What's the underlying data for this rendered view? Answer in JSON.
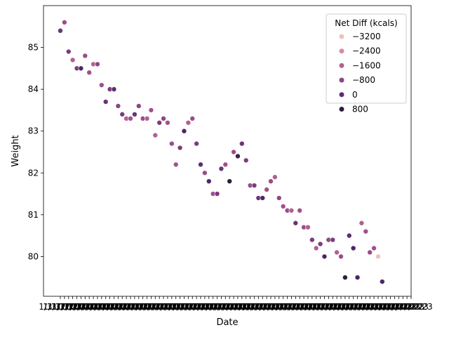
{
  "chart_data": {
    "type": "scatter",
    "title": "",
    "xlabel": "Date",
    "ylabel": "Weight",
    "x_tick_label_text": "1/31/2023",
    "ylim": [
      79.05,
      86.0
    ],
    "yticks": [
      80,
      81,
      82,
      83,
      84,
      85
    ],
    "grid": false,
    "legend": {
      "title": "Net Diff (kcals)",
      "position": "top-right",
      "entries": [
        {
          "label": "−3200",
          "color": "#ebc3b8"
        },
        {
          "label": "−2400",
          "color": "#d58e9c"
        },
        {
          "label": "−1600",
          "color": "#b4628f"
        },
        {
          "label": "−800",
          "color": "#8b4786"
        },
        {
          "label": "0",
          "color": "#5b2d6e"
        },
        {
          "label": "800",
          "color": "#2d1e3e"
        }
      ]
    },
    "points": [
      {
        "y": 85.4,
        "c": "#6a3479"
      },
      {
        "y": 85.6,
        "c": "#9b4c89"
      },
      {
        "y": 84.9,
        "c": "#7a3c80"
      },
      {
        "y": 84.7,
        "c": "#b25f93"
      },
      {
        "y": 84.5,
        "c": "#7a3c80"
      },
      {
        "y": 84.5,
        "c": "#4b2665"
      },
      {
        "y": 84.8,
        "c": "#9b4c89"
      },
      {
        "y": 84.4,
        "c": "#a2508c"
      },
      {
        "y": 84.6,
        "c": "#b25f93"
      },
      {
        "y": 84.6,
        "c": "#8b4786"
      },
      {
        "y": 84.1,
        "c": "#a2508c"
      },
      {
        "y": 83.7,
        "c": "#6a3479"
      },
      {
        "y": 84.0,
        "c": "#7a3c80"
      },
      {
        "y": 84.0,
        "c": "#5b2d6e"
      },
      {
        "y": 83.6,
        "c": "#8b4786"
      },
      {
        "y": 83.4,
        "c": "#7a3c80"
      },
      {
        "y": 83.3,
        "c": "#b25f93"
      },
      {
        "y": 83.3,
        "c": "#a2508c"
      },
      {
        "y": 83.4,
        "c": "#6a3479"
      },
      {
        "y": 83.6,
        "c": "#8b4786"
      },
      {
        "y": 83.3,
        "c": "#9b4c89"
      },
      {
        "y": 83.3,
        "c": "#b25f93"
      },
      {
        "y": 83.5,
        "c": "#a2508c"
      },
      {
        "y": 82.9,
        "c": "#b25f93"
      },
      {
        "y": 83.2,
        "c": "#7a3c80"
      },
      {
        "y": 83.3,
        "c": "#8b4786"
      },
      {
        "y": 83.2,
        "c": "#a2508c"
      },
      {
        "y": 82.7,
        "c": "#9b4c89"
      },
      {
        "y": 82.2,
        "c": "#a2508c"
      },
      {
        "y": 82.6,
        "c": "#7a3c80"
      },
      {
        "y": 83.0,
        "c": "#4b2665"
      },
      {
        "y": 83.2,
        "c": "#b25f93"
      },
      {
        "y": 83.3,
        "c": "#9b4c89"
      },
      {
        "y": 82.7,
        "c": "#7a3c80"
      },
      {
        "y": 82.2,
        "c": "#5b2d6e"
      },
      {
        "y": 82.0,
        "c": "#9b4c89"
      },
      {
        "y": 81.8,
        "c": "#4b2665"
      },
      {
        "y": 81.5,
        "c": "#a2508c"
      },
      {
        "y": 81.5,
        "c": "#7a3c80"
      },
      {
        "y": 82.1,
        "c": "#6a3479"
      },
      {
        "y": 82.2,
        "c": "#a2508c"
      },
      {
        "y": 81.8,
        "c": "#2d1e3e"
      },
      {
        "y": 82.5,
        "c": "#9b4c89"
      },
      {
        "y": 82.4,
        "c": "#3b1f52"
      },
      {
        "y": 82.7,
        "c": "#6a3479"
      },
      {
        "y": 82.3,
        "c": "#7a3c80"
      },
      {
        "y": 81.7,
        "c": "#9b4c89"
      },
      {
        "y": 81.7,
        "c": "#7a3c80"
      },
      {
        "y": 81.4,
        "c": "#6a3479"
      },
      {
        "y": 81.4,
        "c": "#4b2665"
      },
      {
        "y": 81.6,
        "c": "#a2508c"
      },
      {
        "y": 81.8,
        "c": "#9b4c89"
      },
      {
        "y": 81.9,
        "c": "#b25f93"
      },
      {
        "y": 81.4,
        "c": "#8b4786"
      },
      {
        "y": 81.2,
        "c": "#a2508c"
      },
      {
        "y": 81.1,
        "c": "#9b4c89"
      },
      {
        "y": 81.1,
        "c": "#b25f93"
      },
      {
        "y": 80.8,
        "c": "#6a3479"
      },
      {
        "y": 81.1,
        "c": "#a2508c"
      },
      {
        "y": 80.7,
        "c": "#9b4c89"
      },
      {
        "y": 80.7,
        "c": "#b25f93"
      },
      {
        "y": 80.4,
        "c": "#7a3c80"
      },
      {
        "y": 80.2,
        "c": "#b25f93"
      },
      {
        "y": 80.3,
        "c": "#7a3c80"
      },
      {
        "y": 80.0,
        "c": "#4b2665"
      },
      {
        "y": 80.4,
        "c": "#8b4786"
      },
      {
        "y": 80.4,
        "c": "#7a3c80"
      },
      {
        "y": 80.1,
        "c": "#b25f93"
      },
      {
        "y": 80.0,
        "c": "#9b4c89"
      },
      {
        "y": 79.5,
        "c": "#2d1e3e"
      },
      {
        "y": 80.5,
        "c": "#5b2d6e"
      },
      {
        "y": 80.2,
        "c": "#4b2665"
      },
      {
        "y": 79.5,
        "c": "#4b2665"
      },
      {
        "y": 80.8,
        "c": "#b25f93"
      },
      {
        "y": 80.6,
        "c": "#a2508c"
      },
      {
        "y": 80.1,
        "c": "#9b4c89"
      },
      {
        "y": 80.2,
        "c": "#a2508c"
      },
      {
        "y": 80.0,
        "c": "#ebc3b8"
      },
      {
        "y": 79.4,
        "c": "#4b2665"
      }
    ],
    "n_xticks": 86
  }
}
